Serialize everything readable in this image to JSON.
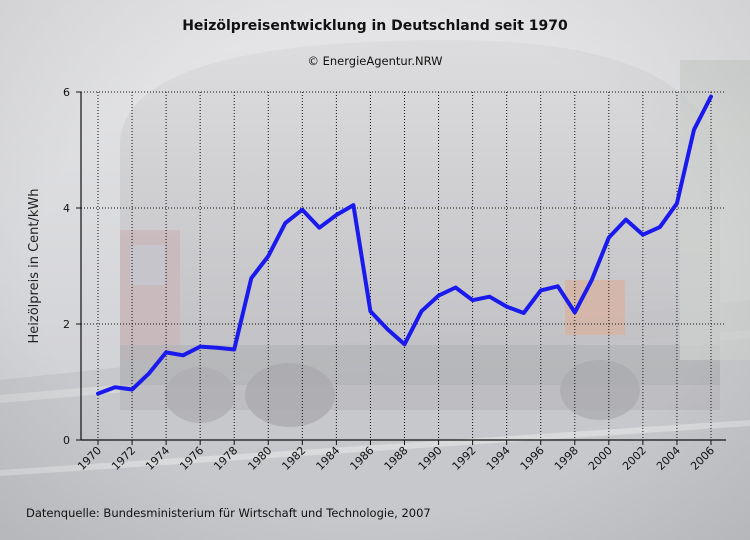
{
  "chart_data": {
    "type": "line",
    "title": "Heizölpreisentwicklung in Deutschland seit 1970",
    "subtitle": "© EnergieAgentur.NRW",
    "ylabel": "Heizölpreis in Cent/kWh",
    "xlabel": "",
    "source": "Datenquelle: Bundesministerium für Wirtschaft und Technologie, 2007",
    "xlim": [
      1970,
      2006
    ],
    "ylim": [
      0,
      6
    ],
    "x_ticks": [
      "1970",
      "1972",
      "1974",
      "1976",
      "1978",
      "1980",
      "1982",
      "1984",
      "1986",
      "1988",
      "1990",
      "1992",
      "1994",
      "1996",
      "1998",
      "2000",
      "2002",
      "2004",
      "2006"
    ],
    "y_ticks": [
      "0",
      "2",
      "4",
      "6"
    ],
    "grid": true,
    "line_color": "#1a1aee",
    "series": [
      {
        "x": [
          1970,
          1971,
          1972,
          1973,
          1974,
          1975,
          1976,
          1977,
          1978,
          1979,
          1980,
          1981,
          1982,
          1983,
          1984,
          1985,
          1986,
          1987,
          1988,
          1989,
          1990,
          1991,
          1992,
          1993,
          1994,
          1995,
          1996,
          1997,
          1998,
          1999,
          2000,
          2001,
          2002,
          2003,
          2004,
          2005,
          2006
        ],
        "values": [
          0.8,
          0.91,
          0.87,
          1.15,
          1.51,
          1.46,
          1.61,
          1.59,
          1.56,
          2.79,
          3.17,
          3.74,
          3.97,
          3.66,
          3.88,
          4.05,
          2.22,
          1.91,
          1.65,
          2.22,
          2.49,
          2.63,
          2.41,
          2.47,
          2.3,
          2.19,
          2.58,
          2.65,
          2.2,
          2.76,
          3.49,
          3.8,
          3.54,
          3.67,
          4.08,
          5.35,
          5.92
        ]
      }
    ]
  }
}
